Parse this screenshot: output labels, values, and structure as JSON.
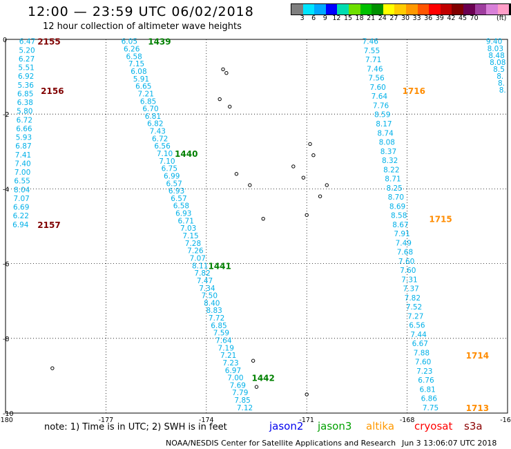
{
  "header": {
    "title": "12:00 — 23:59 UTC 06/02/2018",
    "subtitle": "12 hour collection of altimeter wave heights"
  },
  "scale": {
    "colors": [
      "#7f7f7f",
      "#00e5ff",
      "#00a8ff",
      "#0000ff",
      "#00ddb0",
      "#6ee000",
      "#00c000",
      "#009000",
      "#ffff00",
      "#ffcc00",
      "#ff9900",
      "#ff5500",
      "#ff0000",
      "#c00000",
      "#800000",
      "#6a0050",
      "#9e3d9e",
      "#d880d8",
      "#ff9ec8",
      "#000000"
    ],
    "labels": [
      "3",
      "6",
      "9",
      "12",
      "15",
      "18",
      "21",
      "24",
      "27",
      "30",
      "33",
      "36",
      "39",
      "42",
      "45",
      "70"
    ],
    "unit": "(ft)"
  },
  "axes": {
    "x_labels": [
      "-180",
      "-177",
      "-174",
      "-171",
      "-168",
      "-165"
    ],
    "y_labels": [
      "0",
      "-2",
      "-4",
      "-6",
      "-8",
      "-10"
    ]
  },
  "tracks": [
    {
      "satellite": "cryosat",
      "color": "#00b0e8",
      "lon_start": -179.35,
      "lat_start": -0.05,
      "lon_end": -179.55,
      "lat_end": -4.95,
      "values": [
        "6.47",
        "5.20",
        "6.27",
        "5.51",
        "6.92",
        "5.36",
        "6.85",
        "6.38",
        "5.80",
        "6.72",
        "6.66",
        "5.93",
        "6.87",
        "7.41",
        "7.40",
        "7.00",
        "6.55",
        "8.04",
        "7.07",
        "6.69",
        "6.22",
        "6.94"
      ],
      "times": [
        {
          "label": "2155",
          "lat": -0.05,
          "lon": -178.7
        },
        {
          "label": "2156",
          "lat": -1.37,
          "lon": -178.6
        },
        {
          "label": "2157",
          "lat": -4.95,
          "lon": -178.7
        }
      ],
      "time_color": "#800000"
    },
    {
      "satellite": "jason3",
      "color": "#00b0e8",
      "lon_start": -176.3,
      "lat_start": -0.05,
      "lon_end": -172.85,
      "lat_end": -9.85,
      "values": [
        "6.05",
        "6.26",
        "6.58",
        "7.15",
        "6.08",
        "5.91",
        "6.65",
        "7.21",
        "6.85",
        "6.70",
        "6.81",
        "6.82",
        "7.43",
        "6.72",
        "6.56",
        "7.10",
        "7.10",
        "6.75",
        "6.99",
        "6.57",
        "6.93",
        "6.57",
        "6.58",
        "6.93",
        "6.71",
        "7.03",
        "7.15",
        "7.28",
        "7.26",
        "7.07",
        "8.11",
        "7.82",
        "7.47",
        "7.34",
        "7.50",
        "8.40",
        "8.83",
        "7.72",
        "6.85",
        "7.59",
        "7.64",
        "7.19",
        "7.21",
        "7.23",
        "6.97",
        "7.00",
        "7.69",
        "7.79",
        "7.85",
        "7.12"
      ],
      "times": [
        {
          "label": "1439",
          "lat": -0.05,
          "lon": -175.4
        },
        {
          "label": "1440",
          "lat": -3.05,
          "lon": -174.6
        },
        {
          "label": "1441",
          "lat": -6.05,
          "lon": -173.6
        },
        {
          "label": "1442",
          "lat": -9.05,
          "lon": -172.3
        }
      ],
      "time_color": "#008000"
    },
    {
      "satellite": "altika",
      "color": "#00b0e8",
      "lon_start": -169.1,
      "lat_start": -0.05,
      "lon_end": -167.3,
      "lat_end": -9.85,
      "values": [
        "7.46",
        "7.55",
        "7.71",
        "7.46",
        "7.56",
        "7.60",
        "7.64",
        "7.76",
        "8.59",
        "8.17",
        "8.74",
        "8.08",
        "8.37",
        "8.32",
        "8.22",
        "8.71",
        "8.25",
        "8.70",
        "8.69",
        "8.58",
        "8.67",
        "7.91",
        "7.49",
        "7.68",
        "7.60",
        "7.60",
        "7.31",
        "7.37",
        "7.82",
        "7.52",
        "7.27",
        "6.56",
        "7.44",
        "6.67",
        "7.88",
        "7.60",
        "7.23",
        "6.76",
        "6.81",
        "6.86",
        "7.75"
      ],
      "times": [
        {
          "label": "1716",
          "lat": -1.37,
          "lon": -167.8
        },
        {
          "label": "1715",
          "lat": -4.8,
          "lon": -167.0
        },
        {
          "label": "1714",
          "lat": -8.45,
          "lon": -165.9
        },
        {
          "label": "1713",
          "lat": -9.85,
          "lon": -165.9
        }
      ],
      "time_color": "#ff8c00"
    },
    {
      "satellite": "cryosat",
      "color": "#00b0e8",
      "lon_start": -165.4,
      "lat_start": -0.05,
      "lon_end": -165.15,
      "lat_end": -1.35,
      "values": [
        "9.40",
        "8.03",
        "8.48",
        "8.08",
        "8.5",
        "8.",
        "8.",
        "8."
      ],
      "times": [],
      "time_color": "#0000ff"
    }
  ],
  "legend": {
    "note": "note: 1) Time is in UTC; 2) SWH is in feet",
    "satellites": [
      {
        "name": "jason2",
        "color": "#0000ee"
      },
      {
        "name": "jason3",
        "color": "#00a000"
      },
      {
        "name": "altika",
        "color": "#ff9900"
      },
      {
        "name": "cryosat",
        "color": "#ff0000"
      },
      {
        "name": "s3a",
        "color": "#8b0000"
      }
    ]
  },
  "footer": {
    "source": "NOAA/NESDIS Center for Satellite Applications and Research",
    "generated": "Jun  3 13:06:07 UTC 2018"
  }
}
